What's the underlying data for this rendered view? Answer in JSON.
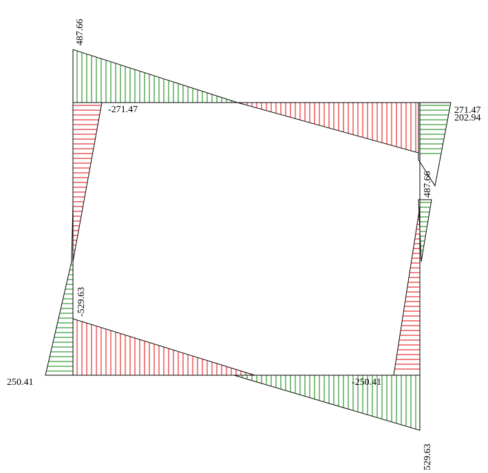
{
  "diagram": {
    "colors": {
      "positive": "#008000",
      "negative": "#e00000",
      "outline": "#000000",
      "background": "#ffffff"
    },
    "labels": {
      "top_left_peak": "487.66",
      "top_left_base": "-271.47",
      "top_right_value": "271.47",
      "top_right_overlap": "202.94",
      "right_column_peak": "487.66",
      "left_column_value": "-529.63",
      "bottom_left_value": "250.41",
      "bottom_right_value": "-250.41",
      "bottom_right_peak": "529.63"
    }
  }
}
